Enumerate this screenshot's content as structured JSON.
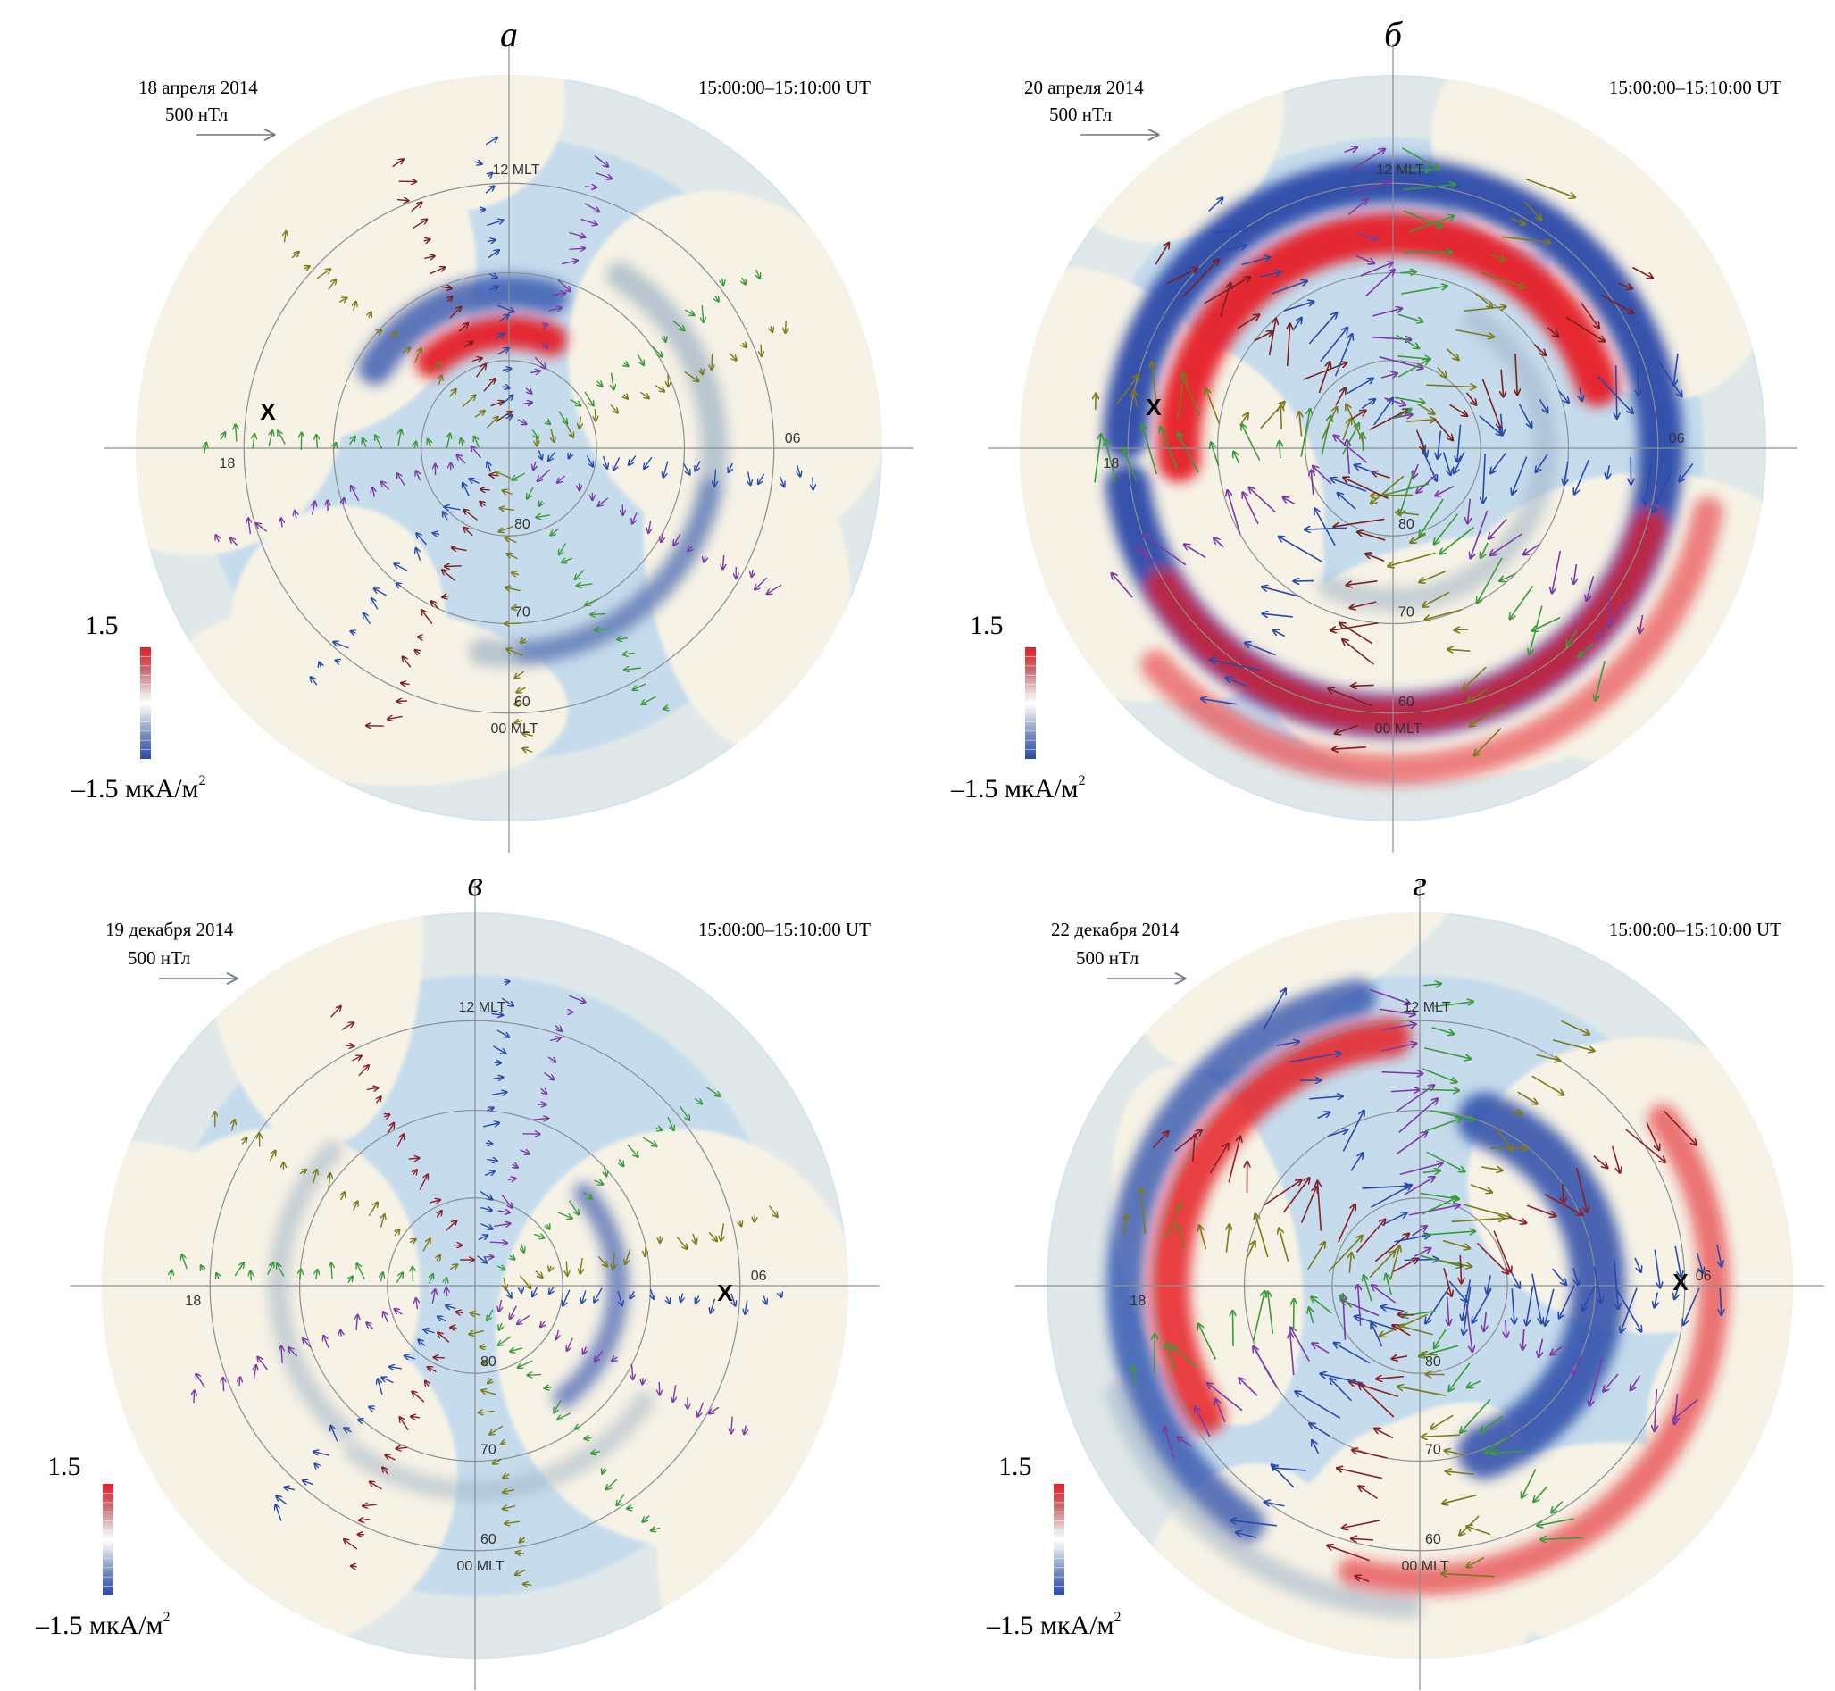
{
  "colors": {
    "ocean": "#c6dced",
    "land": "#f6f2e6",
    "grid": "#8a8f93",
    "positive": "#e51f26",
    "negative": "#2a4aa8",
    "neutral": "#9db1c4"
  },
  "panels": [
    {
      "letter": "а",
      "date": "18 апреля 2014",
      "time": "15:00:00–15:10:00 UT",
      "scale_label": "500 нТл",
      "mlt": {
        "top": "12 MLT",
        "right": "06",
        "bottom": "00 MLT",
        "left": "18"
      },
      "lat_labels": [
        "80",
        "70",
        "60"
      ],
      "colorbar": {
        "max": "1.5",
        "min": "–1.5 мкА/м",
        "unit_sup": "2"
      },
      "cross_marker": "X",
      "activity": "low",
      "arrow_colors": [
        "#2a4aa8",
        "#7b3aa3",
        "#3a9a3a",
        "#7a7a1a",
        "#7a2020"
      ]
    },
    {
      "letter": "б",
      "date": "20 апреля 2014",
      "time": "15:00:00–15:10:00 UT",
      "scale_label": "500 нТл",
      "mlt": {
        "top": "12 MLT",
        "right": "06",
        "bottom": "00 MLT",
        "left": "18"
      },
      "lat_labels": [
        "80",
        "70",
        "60"
      ],
      "colorbar": {
        "max": "1.5",
        "min": "–1.5 мкА/м",
        "unit_sup": "2"
      },
      "cross_marker": "X",
      "activity": "high",
      "arrow_colors": [
        "#2a4aa8",
        "#7b3aa3",
        "#3a9a3a",
        "#7a7a1a",
        "#7a2020"
      ]
    },
    {
      "letter": "в",
      "date": "19 декабря 2014",
      "time": "15:00:00–15:10:00 UT",
      "scale_label": "500 нТл",
      "mlt": {
        "top": "12 MLT",
        "right": "06",
        "bottom": "00 MLT",
        "left": "18"
      },
      "lat_labels": [
        "80",
        "70",
        "60"
      ],
      "colorbar": {
        "max": "1.5",
        "min": "–1.5 мкА/м",
        "unit_sup": "2"
      },
      "cross_marker": "X",
      "activity": "low",
      "arrow_colors": [
        "#2a4aa8",
        "#7b3aa3",
        "#3a9a3a",
        "#7a7a1a",
        "#8a1e2a"
      ]
    },
    {
      "letter": "г",
      "date": "22 декабря 2014",
      "time": "15:00:00–15:10:00 UT",
      "scale_label": "500 нТл",
      "mlt": {
        "top": "12 MLT",
        "right": "06",
        "bottom": "00 MLT",
        "left": "18"
      },
      "lat_labels": [
        "80",
        "70",
        "60"
      ],
      "colorbar": {
        "max": "1.5",
        "min": "–1.5 мкА/м",
        "unit_sup": "2"
      },
      "cross_marker": "X",
      "activity": "high",
      "arrow_colors": [
        "#2a4aa8",
        "#7b3aa3",
        "#3a9a3a",
        "#7a7a1a",
        "#8a1e2a"
      ]
    }
  ]
}
